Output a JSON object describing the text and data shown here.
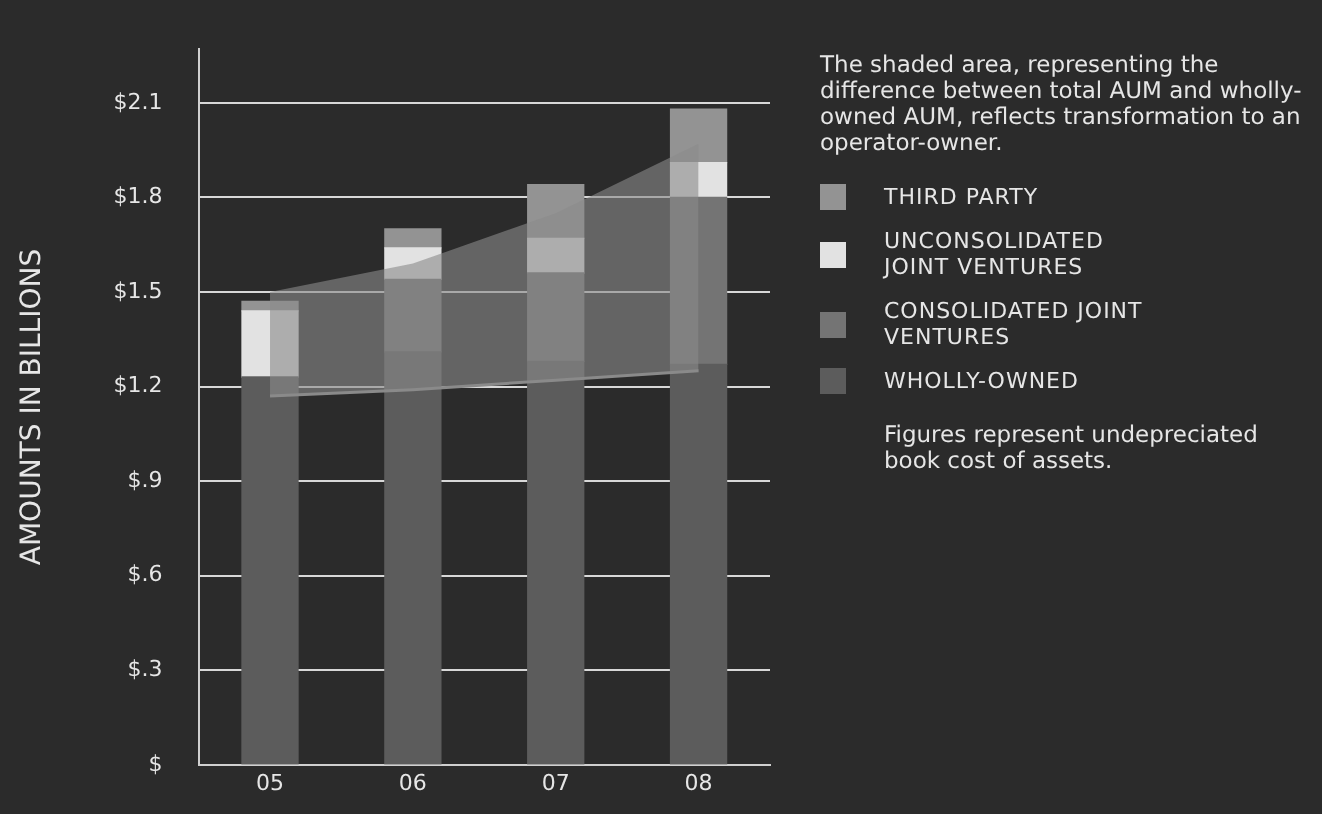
{
  "chart_data": {
    "type": "bar",
    "stacked": true,
    "ylabel": "AMOUNTS IN BILLIONS",
    "categories": [
      "05",
      "06",
      "07",
      "08"
    ],
    "series": [
      {
        "name": "WHOLLY-OWNED",
        "color": "#5c5c5c",
        "values": [
          1.23,
          1.31,
          1.28,
          1.27
        ]
      },
      {
        "name": "CONSOLIDATED JOINT VENTURES",
        "color": "#747474",
        "values": [
          0,
          0.23,
          0.28,
          0.53
        ]
      },
      {
        "name": "UNCONSOLIDATED JOINT VENTURES",
        "color": "#e2e2e2",
        "values": [
          0.21,
          0.1,
          0.11,
          0.11
        ]
      },
      {
        "name": "THIRD PARTY",
        "color": "#939393",
        "values": [
          0.03,
          0.06,
          0.17,
          0.17
        ]
      },
      {
        "type": "line",
        "color": "#8a8a8a",
        "values": [
          1.17,
          1.19,
          1.22,
          1.25
        ],
        "lower": [
          1.17,
          1.19,
          1.22,
          1.25
        ],
        "upper": [
          1.5,
          1.59,
          1.75,
          1.97
        ]
      }
    ],
    "ylim": [
      0,
      2.27
    ],
    "yticks": [
      {
        "value": 0,
        "label": "$"
      },
      {
        "value": 0.3,
        "label": "$.3"
      },
      {
        "value": 0.6,
        "label": "$.6"
      },
      {
        "value": 0.9,
        "label": "$.9"
      },
      {
        "value": 1.2,
        "label": "$1.2"
      },
      {
        "value": 1.5,
        "label": "$1.5"
      },
      {
        "value": 1.8,
        "label": "$1.8"
      },
      {
        "value": 2.1,
        "label": "$2.1"
      }
    ],
    "grid": "y",
    "legend": "right",
    "annotations": [
      "The shaded area, representing the difference between total AUM and wholly-owned AUM, reflects transformation to an operator-owner.",
      "Figures represent undepreciated book cost of assets."
    ]
  }
}
